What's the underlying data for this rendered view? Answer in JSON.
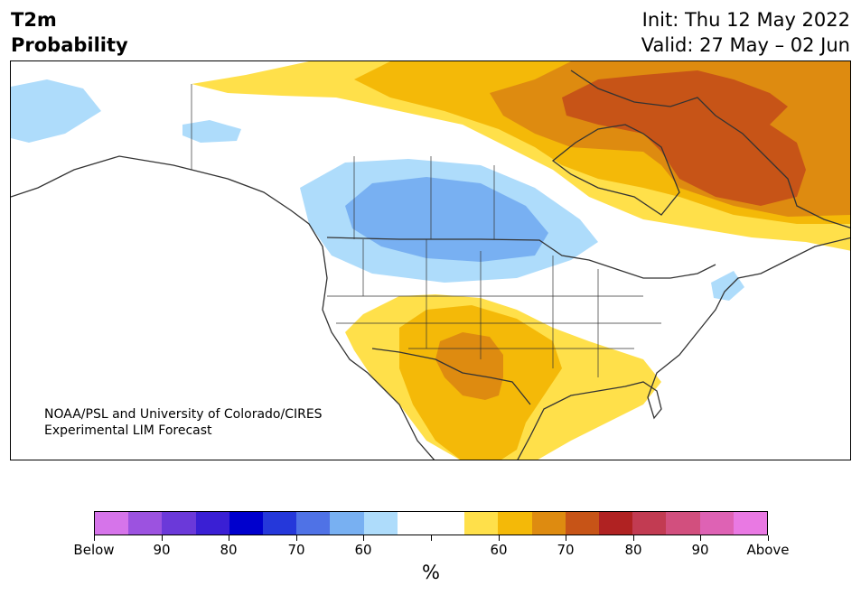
{
  "header": {
    "variable": "T2m",
    "product": "Probability",
    "init": "Init: Thu 12 May 2022",
    "valid": "Valid: 27 May – 02 Jun"
  },
  "map": {
    "credit_line1": "NOAA/PSL and University of Colorado/CIRES",
    "credit_line2": "Experimental LIM Forecast"
  },
  "colorbar": {
    "unit": "%",
    "colors": [
      "#d674ea",
      "#9c52e0",
      "#6b39d9",
      "#3a1fd4",
      "#0000cd",
      "#2538da",
      "#4f72e6",
      "#78b0f2",
      "#aedcfb",
      "#ffffff",
      "#ffffff",
      "#ffe04a",
      "#f4b908",
      "#de8b10",
      "#c75417",
      "#b02222",
      "#c23b52",
      "#d24f7e",
      "#de62b4",
      "#e979e3"
    ],
    "tick_labels": [
      "Below",
      "90",
      "80",
      "70",
      "60",
      "",
      "60",
      "70",
      "80",
      "90",
      "Above"
    ]
  }
}
